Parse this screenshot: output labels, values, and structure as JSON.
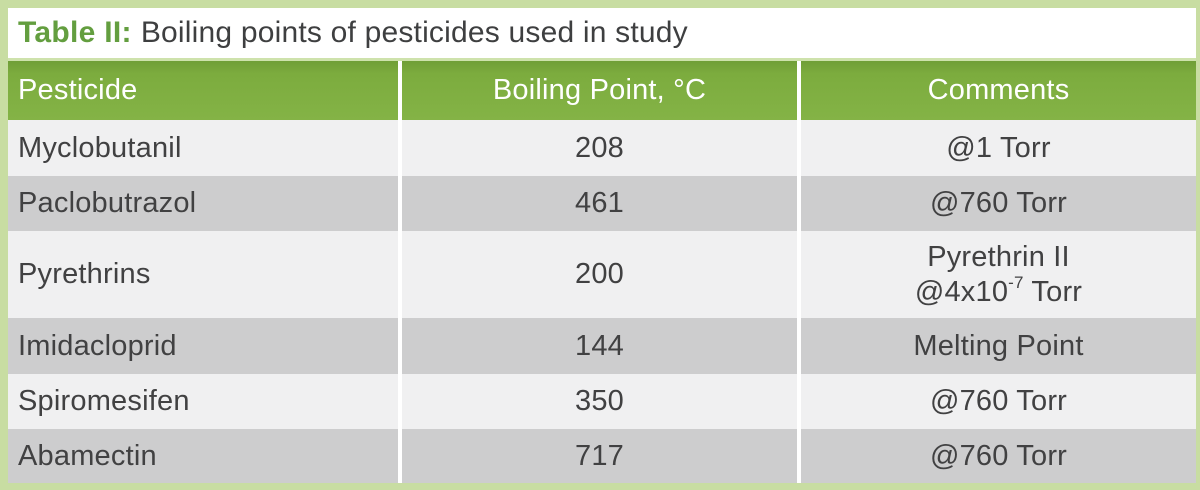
{
  "title": {
    "prefix": "Table II:",
    "text": "Boiling points of pesticides used in study"
  },
  "table": {
    "headers": [
      "Pesticide",
      "Boiling Point, °C",
      "Comments"
    ],
    "rows": [
      {
        "pesticide": "Myclobutanil",
        "boiling_point": "208",
        "comment": "@1 Torr"
      },
      {
        "pesticide": "Paclobutrazol",
        "boiling_point": "461",
        "comment": "@760 Torr"
      },
      {
        "pesticide": "Pyrethrins",
        "boiling_point": "200",
        "comment_line1": "Pyrethrin II",
        "comment_line2": {
          "pre": "@4x10",
          "sup": "-7",
          "post": " Torr"
        }
      },
      {
        "pesticide": "Imidacloprid",
        "boiling_point": "144",
        "comment": "Melting Point"
      },
      {
        "pesticide": "Spiromesifen",
        "boiling_point": "350",
        "comment": "@760 Torr"
      },
      {
        "pesticide": "Abamectin",
        "boiling_point": "717",
        "comment": "@760 Torr"
      }
    ]
  },
  "chart_data": {
    "type": "table",
    "title": "Table II: Boiling points of pesticides used in study",
    "columns": [
      "Pesticide",
      "Boiling Point, °C",
      "Comments"
    ],
    "rows": [
      [
        "Myclobutanil",
        208,
        "@1 Torr"
      ],
      [
        "Paclobutrazol",
        461,
        "@760 Torr"
      ],
      [
        "Pyrethrins",
        200,
        "Pyrethrin II @4x10^-7 Torr"
      ],
      [
        "Imidacloprid",
        144,
        "Melting Point"
      ],
      [
        "Spiromesifen",
        350,
        "@760 Torr"
      ],
      [
        "Abamectin",
        717,
        "@760 Torr"
      ]
    ]
  },
  "colors": {
    "header_green": "#7DAE3F",
    "title_green": "#639E3F",
    "frame_green": "#C8DDA2",
    "row_light": "#F0F0F1",
    "row_dark": "#CDCDCE",
    "text": "#414142",
    "header_text": "#FFFFFF"
  }
}
